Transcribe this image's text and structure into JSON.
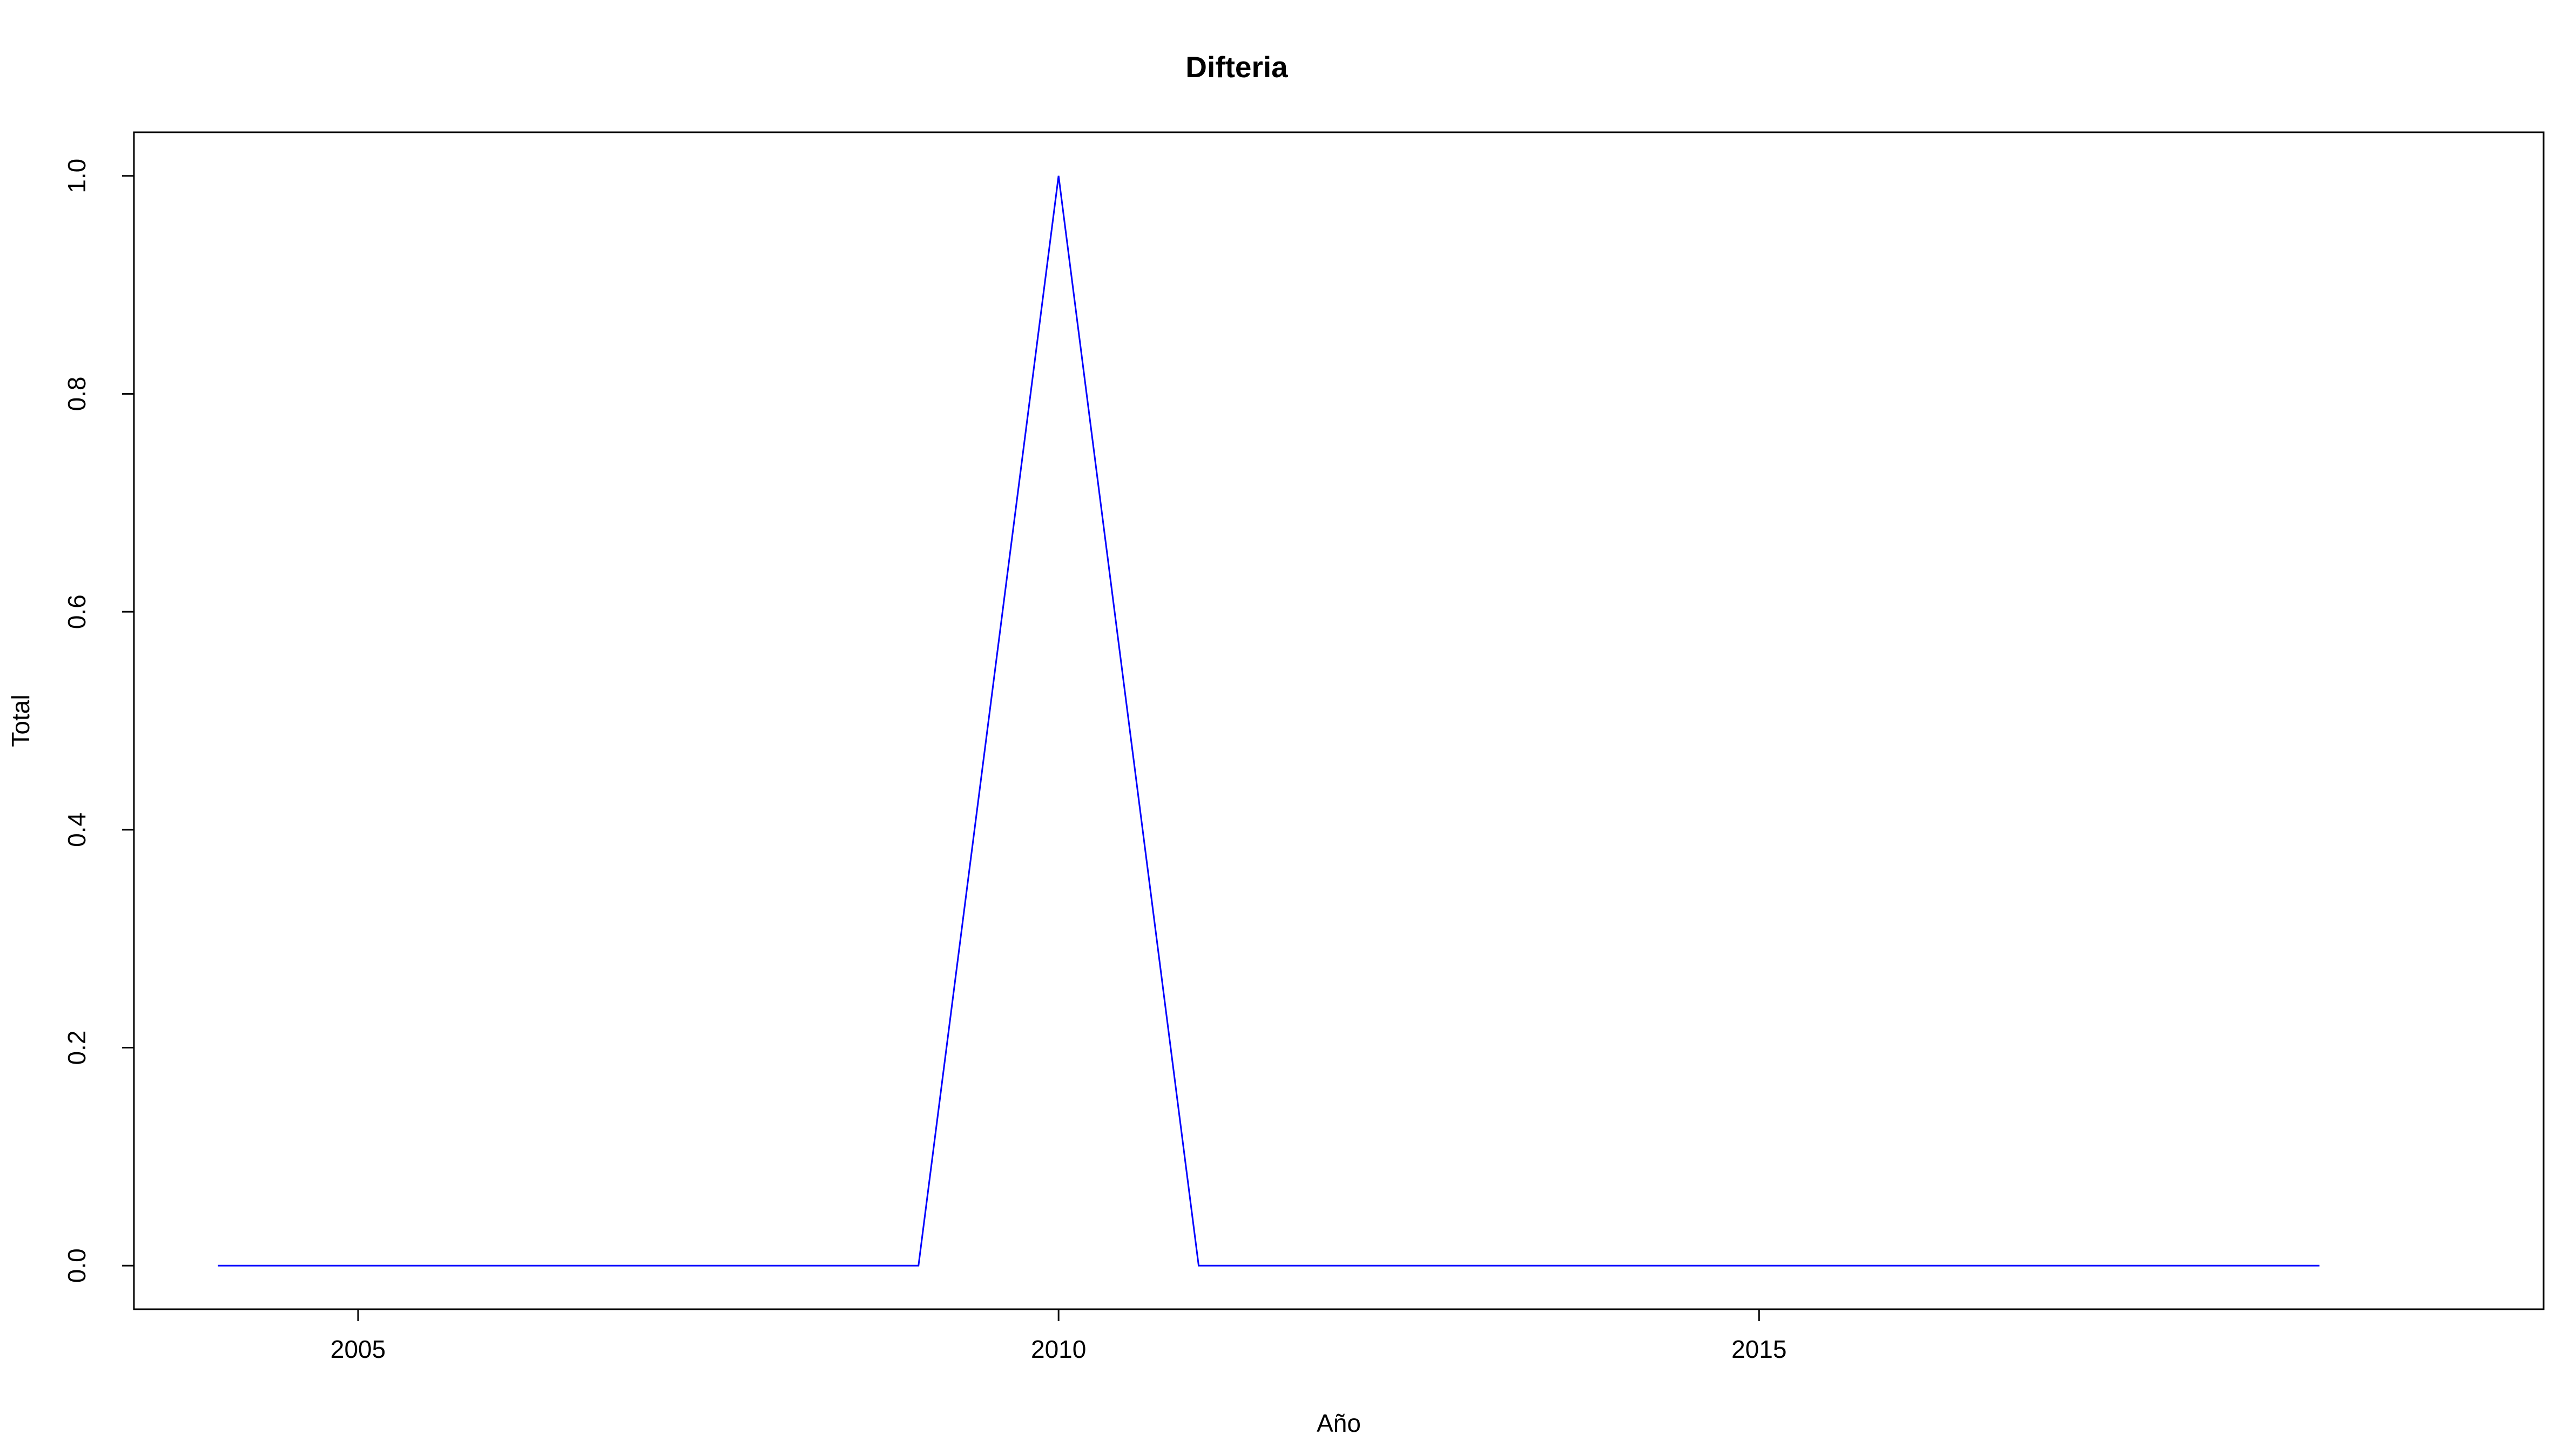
{
  "chart_data": {
    "type": "line",
    "title": "Difteria",
    "xlabel": "Año",
    "ylabel": "Total",
    "x": [
      2004,
      2005,
      2006,
      2007,
      2008,
      2009,
      2010,
      2011,
      2012,
      2013,
      2014,
      2015,
      2016,
      2017,
      2018,
      2019
    ],
    "series": [
      {
        "values": [
          0,
          0,
          0,
          0,
          0,
          0,
          1,
          0,
          0,
          0,
          0,
          0,
          0,
          0,
          0,
          0
        ],
        "color": "#0000ff"
      }
    ],
    "xlim": [
      2003.4,
      2020.6
    ],
    "ylim": [
      -0.04,
      1.04
    ],
    "xticks": [
      2005,
      2010,
      2015
    ],
    "xtick_labels": [
      "2005",
      "2010",
      "2015"
    ],
    "yticks": [
      0,
      0.2,
      0.4,
      0.6,
      0.8,
      1.0
    ],
    "ytick_labels": [
      "0.0",
      "0.2",
      "0.4",
      "0.6",
      "0.8",
      "1.0"
    ],
    "grid": false,
    "legend": "none"
  }
}
